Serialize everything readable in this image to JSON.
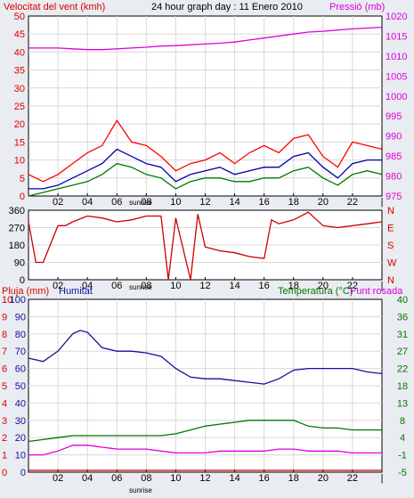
{
  "page": {
    "title": "24 hour graph day : 11 Enero 2010",
    "colors": {
      "background": "#e9ecf0",
      "plot_background": "#ffffff",
      "wind_gust": "#ff0000",
      "wind_avg": "#0000aa",
      "wind_low": "#007700",
      "pressure": "#dd00dd",
      "direction": "#cc0000",
      "rain": "#cc0000",
      "humidity": "#1010a0",
      "temperature": "#007700",
      "dewpoint": "#dd00dd",
      "grid": "#d8d8d8"
    }
  },
  "chart_data": [
    {
      "type": "line",
      "title": "24 hour graph day : 11 Enero 2010",
      "ylabel_left": "Velocitat del vent (kmh)",
      "ylabel_right": "Pressió (mb)",
      "ylim_left": [
        0,
        50
      ],
      "ylim_right": [
        975,
        1020
      ],
      "yticks_left": [
        "0",
        "5",
        "10",
        "15",
        "20",
        "25",
        "30",
        "35",
        "40",
        "45",
        "50"
      ],
      "yticks_right": [
        "975",
        "980",
        "985",
        "990",
        "995",
        "1000",
        "1005",
        "1010",
        "1015",
        "1020"
      ],
      "xticks": [
        "02",
        "04",
        "06",
        "08",
        "10",
        "12",
        "14",
        "16",
        "18",
        "20",
        "22",
        "|"
      ],
      "sunrise_label": "sunrise",
      "grid": true,
      "series": [
        {
          "axis": "right",
          "x": [
            0,
            1,
            2,
            3,
            4,
            5,
            6,
            7,
            8,
            9,
            10,
            11,
            12,
            13,
            14,
            15,
            16,
            17,
            18,
            19,
            20,
            21,
            22,
            23,
            24
          ],
          "values": [
            1012,
            1012,
            1012,
            1011.8,
            1011.6,
            1011.6,
            1011.8,
            1012,
            1012.2,
            1012.5,
            1012.6,
            1012.8,
            1013,
            1013.2,
            1013.5,
            1014,
            1014.5,
            1015,
            1015.5,
            1016,
            1016.2,
            1016.5,
            1016.8,
            1017,
            1017.2
          ]
        },
        {
          "axis": "left",
          "x": [
            0,
            1,
            2,
            3,
            4,
            5,
            6,
            7,
            8,
            9,
            10,
            11,
            12,
            13,
            14,
            15,
            16,
            17,
            18,
            19,
            20,
            21,
            22,
            23,
            24
          ],
          "values": [
            6,
            4,
            6,
            9,
            12,
            14,
            21,
            15,
            14,
            11,
            7,
            9,
            10,
            12,
            9,
            12,
            14,
            12,
            16,
            17,
            11,
            8,
            15,
            14,
            13
          ]
        },
        {
          "axis": "left",
          "x": [
            0,
            1,
            2,
            3,
            4,
            5,
            6,
            7,
            8,
            9,
            10,
            11,
            12,
            13,
            14,
            15,
            16,
            17,
            18,
            19,
            20,
            21,
            22,
            23,
            24
          ],
          "values": [
            2,
            2,
            3,
            5,
            7,
            9,
            13,
            11,
            9,
            8,
            4,
            6,
            7,
            8,
            6,
            7,
            8,
            8,
            11,
            12,
            8,
            5,
            9,
            10,
            10
          ]
        },
        {
          "axis": "left",
          "x": [
            0,
            1,
            2,
            3,
            4,
            5,
            6,
            7,
            8,
            9,
            10,
            11,
            12,
            13,
            14,
            15,
            16,
            17,
            18,
            19,
            20,
            21,
            22,
            23,
            24
          ],
          "values": [
            0,
            1,
            2,
            3,
            4,
            6,
            9,
            8,
            6,
            5,
            2,
            4,
            5,
            5,
            4,
            4,
            5,
            5,
            7,
            8,
            5,
            3,
            6,
            7,
            6
          ]
        }
      ]
    },
    {
      "type": "line",
      "ylim": [
        0,
        360
      ],
      "yticks_left": [
        "0",
        "90",
        "180",
        "270",
        "360"
      ],
      "yticks_right": [
        "N",
        "E",
        "S",
        "W",
        "N"
      ],
      "xticks": [
        "02",
        "04",
        "06",
        "08",
        "10",
        "12",
        "14",
        "16",
        "18",
        "20",
        "22",
        "|"
      ],
      "sunrise_label": "sunrise",
      "series": [
        {
          "x": [
            0,
            0.5,
            1,
            2,
            2.5,
            3,
            4,
            5,
            6,
            7,
            8,
            9,
            9.5,
            10,
            11,
            11.5,
            12,
            13,
            14,
            15,
            16,
            16.5,
            17,
            18,
            19,
            20,
            21,
            22,
            23,
            24
          ],
          "values": [
            300,
            90,
            90,
            280,
            280,
            300,
            330,
            320,
            300,
            310,
            330,
            330,
            0,
            320,
            0,
            340,
            170,
            150,
            140,
            120,
            110,
            310,
            290,
            310,
            350,
            280,
            270,
            280,
            290,
            300
          ]
        }
      ]
    },
    {
      "type": "line",
      "ylabel_left": "Pluja (mm)",
      "ylabel_left2": "Humitat",
      "ylabel_right": "Temperatura (°C)",
      "ylabel_right2": "Punt rosada",
      "ylim_left": [
        0,
        100
      ],
      "ylim_right": [
        -5,
        40
      ],
      "yticks_rain": [
        "0",
        "1",
        "2",
        "3",
        "4",
        "5",
        "6",
        "7",
        "8",
        "9",
        "10"
      ],
      "yticks_humidity": [
        "0",
        "10",
        "20",
        "30",
        "40",
        "50",
        "60",
        "70",
        "80",
        "90",
        "100"
      ],
      "yticks_right": [
        "-5",
        "-1",
        "4",
        "8",
        "13",
        "18",
        "22",
        "27",
        "31",
        "36",
        "40"
      ],
      "xticks": [
        "02",
        "04",
        "06",
        "08",
        "10",
        "12",
        "14",
        "16",
        "18",
        "20",
        "22",
        "|"
      ],
      "sunrise_label": "sunrise",
      "grid": true,
      "series": [
        {
          "axis": "left",
          "x": [
            0,
            1,
            2,
            3,
            4,
            5,
            6,
            7,
            8,
            9,
            10,
            11,
            12,
            13,
            14,
            15,
            16,
            17,
            18,
            19,
            20,
            21,
            22,
            23,
            24
          ],
          "values": [
            0,
            0,
            0,
            0,
            0,
            0,
            0,
            0,
            0,
            0,
            0,
            0,
            0,
            0,
            0,
            0,
            0,
            0,
            0,
            0,
            0,
            0,
            0,
            0,
            0
          ]
        },
        {
          "axis": "left",
          "x": [
            0,
            1,
            2,
            3,
            3.5,
            4,
            5,
            6,
            7,
            8,
            9,
            10,
            11,
            12,
            13,
            14,
            15,
            16,
            17,
            18,
            19,
            20,
            21,
            22,
            23,
            24
          ],
          "values": [
            66,
            64,
            70,
            80,
            82,
            81,
            72,
            70,
            70,
            69,
            67,
            60,
            55,
            54,
            54,
            53,
            52,
            51,
            54,
            59,
            60,
            60,
            60,
            60,
            58,
            57
          ]
        },
        {
          "axis": "right",
          "x": [
            0,
            1,
            2,
            3,
            4,
            5,
            6,
            7,
            8,
            9,
            10,
            11,
            12,
            13,
            14,
            15,
            16,
            17,
            18,
            19,
            20,
            21,
            22,
            23,
            24
          ],
          "values": [
            3,
            3.5,
            4,
            4.5,
            4.5,
            4.5,
            4.5,
            4.5,
            4.5,
            4.5,
            5,
            6,
            7,
            7.5,
            8,
            8.5,
            8.5,
            8.5,
            8.5,
            7,
            6.5,
            6.5,
            6,
            6,
            6
          ]
        },
        {
          "axis": "right",
          "x": [
            0,
            1,
            2,
            3,
            4,
            5,
            6,
            7,
            8,
            9,
            10,
            11,
            12,
            13,
            14,
            15,
            16,
            17,
            18,
            19,
            20,
            21,
            22,
            23,
            24
          ],
          "values": [
            -0.5,
            -0.5,
            0.5,
            2,
            2,
            1.5,
            1,
            1,
            1,
            0.5,
            0,
            0,
            0,
            0.5,
            0.5,
            0.5,
            0.5,
            1,
            1,
            0.5,
            0.5,
            0.5,
            0,
            0,
            0
          ]
        }
      ]
    }
  ]
}
